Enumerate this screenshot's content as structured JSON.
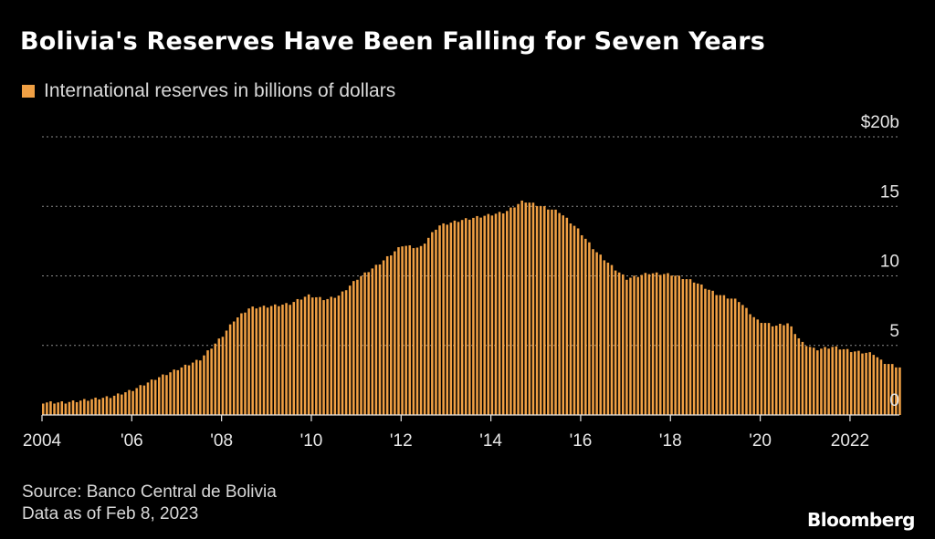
{
  "header": {
    "title": "Bolivia's Reserves Have Been Falling for Seven Years"
  },
  "legend": {
    "label": "International reserves in billions of dollars",
    "color": "#f0a044"
  },
  "footer": {
    "source": "Source: Banco Central de Bolivia",
    "date_note": "Data as of Feb 8, 2023"
  },
  "brand": {
    "name": "Bloomberg"
  },
  "chart_data": {
    "type": "bar",
    "series": [
      {
        "name": "International reserves in billions of dollars",
        "color": "#f0a044",
        "x_start": 2004.0,
        "x_step_months": 1,
        "anchors": [
          [
            2004.0,
            0.9
          ],
          [
            2004.5,
            0.9
          ],
          [
            2005.0,
            1.1
          ],
          [
            2005.5,
            1.3
          ],
          [
            2006.0,
            1.8
          ],
          [
            2006.5,
            2.6
          ],
          [
            2007.0,
            3.3
          ],
          [
            2007.5,
            4.0
          ],
          [
            2008.0,
            5.7
          ],
          [
            2008.25,
            6.8
          ],
          [
            2008.6,
            7.7
          ],
          [
            2009.0,
            7.8
          ],
          [
            2009.5,
            8.0
          ],
          [
            2009.9,
            8.6
          ],
          [
            2010.3,
            8.3
          ],
          [
            2010.6,
            8.6
          ],
          [
            2011.0,
            9.8
          ],
          [
            2011.5,
            10.9
          ],
          [
            2012.0,
            12.2
          ],
          [
            2012.4,
            12.0
          ],
          [
            2012.8,
            13.6
          ],
          [
            2013.3,
            14.0
          ],
          [
            2013.8,
            14.3
          ],
          [
            2014.3,
            14.6
          ],
          [
            2014.7,
            15.4
          ],
          [
            2015.0,
            15.1
          ],
          [
            2015.5,
            14.6
          ],
          [
            2015.9,
            13.4
          ],
          [
            2016.3,
            11.8
          ],
          [
            2016.7,
            10.6
          ],
          [
            2017.0,
            9.8
          ],
          [
            2017.5,
            10.2
          ],
          [
            2018.0,
            10.1
          ],
          [
            2018.5,
            9.6
          ],
          [
            2019.0,
            8.7
          ],
          [
            2019.5,
            8.2
          ],
          [
            2019.9,
            6.8
          ],
          [
            2020.3,
            6.4
          ],
          [
            2020.6,
            6.6
          ],
          [
            2020.9,
            5.2
          ],
          [
            2021.2,
            4.7
          ],
          [
            2021.6,
            4.9
          ],
          [
            2022.0,
            4.6
          ],
          [
            2022.5,
            4.4
          ],
          [
            2022.7,
            3.8
          ],
          [
            2022.9,
            3.6
          ],
          [
            2023.1,
            3.4
          ]
        ]
      }
    ],
    "x_range": [
      2004.0,
      2023.1
    ],
    "y_range": [
      0,
      20
    ],
    "y_ticks": [
      {
        "value": 0,
        "label": "0"
      },
      {
        "value": 5,
        "label": "5"
      },
      {
        "value": 10,
        "label": "10"
      },
      {
        "value": 15,
        "label": "15"
      },
      {
        "value": 20,
        "label": "$20b"
      }
    ],
    "x_ticks": [
      {
        "value": 2004,
        "label": "2004"
      },
      {
        "value": 2006,
        "label": "'06"
      },
      {
        "value": 2008,
        "label": "'08"
      },
      {
        "value": 2010,
        "label": "'10"
      },
      {
        "value": 2012,
        "label": "'12"
      },
      {
        "value": 2014,
        "label": "'14"
      },
      {
        "value": 2016,
        "label": "'16"
      },
      {
        "value": 2018,
        "label": "'18"
      },
      {
        "value": 2020,
        "label": "'20"
      },
      {
        "value": 2022,
        "label": "2022"
      }
    ],
    "grid": true,
    "legend_position": "top-left"
  }
}
